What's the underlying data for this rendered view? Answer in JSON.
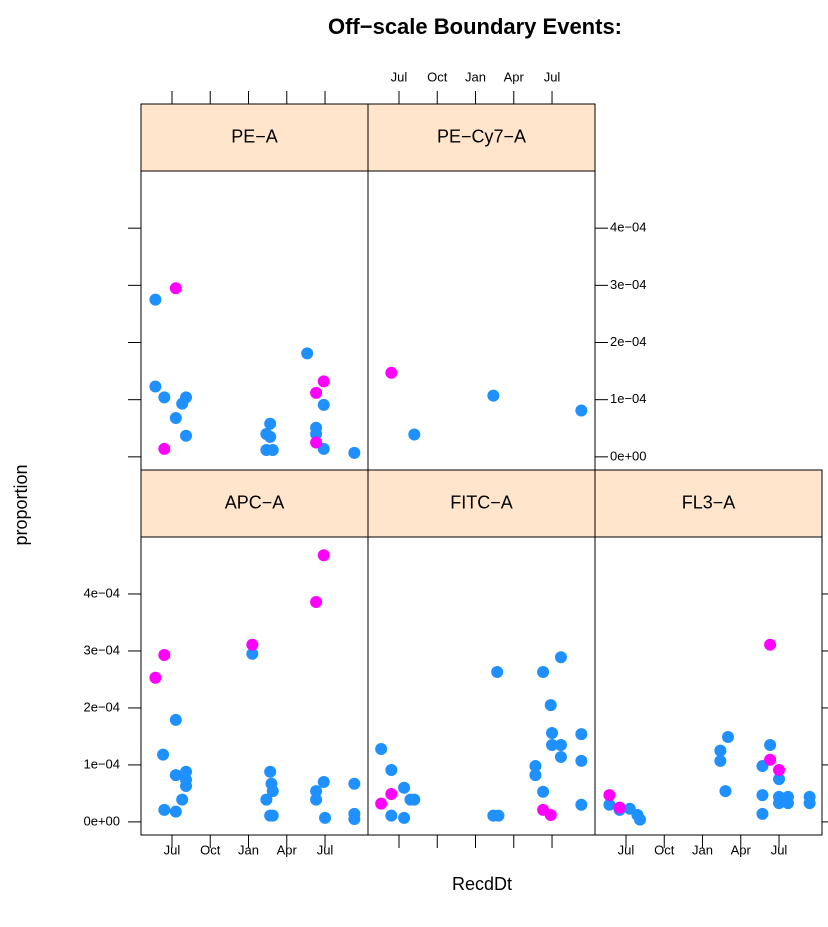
{
  "chart_data": {
    "type": "scatter",
    "title": "Off−scale Boundary Events:",
    "xlabel": "RecdDt",
    "ylabel": "proportion",
    "xlim": [
      -2.43,
      15.37
    ],
    "xticks": [
      {
        "value": 0,
        "label": "Jul"
      },
      {
        "value": 3,
        "label": "Oct"
      },
      {
        "value": 6,
        "label": "Jan"
      },
      {
        "value": 9,
        "label": "Apr"
      },
      {
        "value": 12,
        "label": "Jul"
      }
    ],
    "ylim": [
      -2.3e-05,
      0.0005
    ],
    "yticks": [
      {
        "value": 0,
        "label": "0e+00"
      },
      {
        "value": 0.0001,
        "label": "1e−04"
      },
      {
        "value": 0.0002,
        "label": "2e−04"
      },
      {
        "value": 0.0003,
        "label": "3e−04"
      },
      {
        "value": 0.0004,
        "label": "4e−04"
      }
    ],
    "strip_color": "#ffe5cc",
    "panels": [
      {
        "title": "APC−A",
        "series": [
          {
            "color": "#1e90ff",
            "x": [
              -0.7,
              0.3,
              0.3,
              1.1,
              1.1,
              1.1,
              0.8,
              -0.6,
              0.3,
              6.3,
              7.7,
              7.8,
              7.9,
              7.4,
              7.7,
              7.9,
              11.3,
              11.3,
              11.9,
              12.0,
              14.3,
              14.3,
              14.3
            ],
            "values": [
              0.000118,
              0.000179,
              8.2e-05,
              8.8e-05,
              7.4e-05,
              6.3e-05,
              3.9e-05,
              2.1e-05,
              1.8e-05,
              0.000295,
              8.8e-05,
              6.7e-05,
              5.4e-05,
              3.9e-05,
              1.1e-05,
              1.1e-05,
              5.4e-05,
              3.9e-05,
              7e-05,
              7e-06,
              6.7e-05,
              1.4e-05,
              5e-06
            ]
          },
          {
            "color": "#ff00ff",
            "x": [
              -1.3,
              -0.6,
              6.3,
              11.3,
              11.9
            ],
            "values": [
              0.000253,
              0.000293,
              0.000311,
              0.000386,
              0.000468
            ]
          }
        ]
      },
      {
        "title": "FITC−A",
        "series": [
          {
            "color": "#1e90ff",
            "x": [
              -1.4,
              -0.6,
              0.4,
              0.9,
              1.2,
              -0.6,
              0.4,
              7.7,
              7.4,
              7.8,
              10.7,
              10.7,
              11.3,
              11.3,
              11.9,
              12.0,
              12.0,
              12.7,
              12.7,
              12.7,
              14.3,
              14.3,
              14.3
            ],
            "values": [
              0.000128,
              9.1e-05,
              6e-05,
              3.9e-05,
              3.9e-05,
              1.1e-05,
              7e-06,
              0.000263,
              1.1e-05,
              1.1e-05,
              9.8e-05,
              8.2e-05,
              5.3e-05,
              0.000263,
              0.000205,
              0.000156,
              0.000135,
              0.000289,
              0.000135,
              0.000114,
              0.000154,
              0.000107,
              3e-05
            ]
          },
          {
            "color": "#ff00ff",
            "x": [
              -1.4,
              -0.6,
              11.3,
              11.9
            ],
            "values": [
              3.2e-05,
              4.9e-05,
              2.1e-05,
              1.2e-05
            ]
          }
        ]
      },
      {
        "title": "FL3−A",
        "series": [
          {
            "color": "#1e90ff",
            "x": [
              -1.3,
              -0.5,
              0.3,
              0.9,
              1.1,
              7.4,
              7.4,
              8.0,
              7.8,
              10.7,
              10.7,
              10.7,
              11.3,
              12.0,
              12.0,
              12.0,
              12.7,
              12.7,
              14.4,
              14.4
            ],
            "values": [
              3e-05,
              2.1e-05,
              2.3e-05,
              1.2e-05,
              4e-06,
              0.000125,
              0.000107,
              0.000149,
              5.4e-05,
              9.8e-05,
              4.7e-05,
              1.4e-05,
              0.000135,
              7.5e-05,
              4.4e-05,
              3.3e-05,
              4.4e-05,
              3.3e-05,
              4.4e-05,
              3.3e-05
            ]
          },
          {
            "color": "#ff00ff",
            "x": [
              -1.3,
              -0.5,
              11.3,
              11.3,
              12.0
            ],
            "values": [
              4.7e-05,
              2.5e-05,
              0.000311,
              0.000109,
              9.1e-05
            ]
          }
        ]
      },
      {
        "title": "PE−A",
        "series": [
          {
            "color": "#1e90ff",
            "x": [
              -1.3,
              -1.3,
              -0.6,
              1.1,
              0.8,
              0.3,
              1.1,
              7.7,
              7.4,
              7.7,
              7.4,
              7.9,
              10.6,
              11.3,
              11.3,
              11.9,
              11.9,
              14.3
            ],
            "values": [
              0.000275,
              0.000123,
              0.000104,
              0.000104,
              9.3e-05,
              6.8e-05,
              3.7e-05,
              5.8e-05,
              4e-05,
              3.5e-05,
              1.2e-05,
              1.2e-05,
              0.000181,
              5.1e-05,
              4e-05,
              9.1e-05,
              1.4e-05,
              7e-06
            ]
          },
          {
            "color": "#ff00ff",
            "x": [
              -0.6,
              0.3,
              11.3,
              11.9,
              11.3
            ],
            "values": [
              1.4e-05,
              0.000295,
              0.000112,
              0.000132,
              2.5e-05
            ]
          }
        ]
      },
      {
        "title": "PE−Cy7−A",
        "series": [
          {
            "color": "#1e90ff",
            "x": [
              1.2,
              7.4,
              14.3
            ],
            "values": [
              3.9e-05,
              0.000107,
              8.1e-05
            ]
          },
          {
            "color": "#ff00ff",
            "x": [
              -0.6
            ],
            "values": [
              0.000147
            ]
          }
        ]
      }
    ]
  }
}
